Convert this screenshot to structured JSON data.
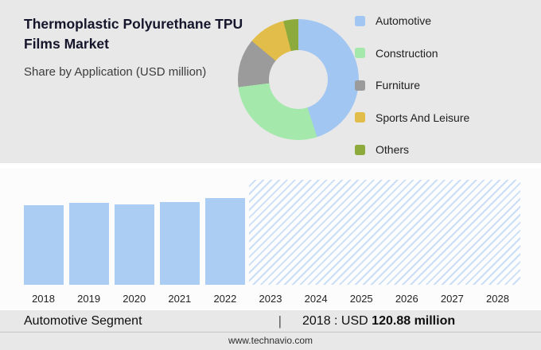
{
  "header": {
    "title_line1": "Thermoplastic Polyurethane TPU",
    "title_line2": "Films Market",
    "subtitle": "Share by Application (USD million)"
  },
  "chart_data": [
    {
      "type": "pie",
      "subtype": "donut",
      "title": "Share by Application (USD million)",
      "unit": "USD million",
      "legend_position": "right",
      "segments": [
        {
          "label": "Automotive",
          "percent": 45,
          "color": "#a2c6f2"
        },
        {
          "label": "Construction",
          "percent": 28,
          "color": "#a5e8ab"
        },
        {
          "label": "Furniture",
          "percent": 13,
          "color": "#9b9b9b"
        },
        {
          "label": "Sports And Leisure",
          "percent": 10,
          "color": "#e3bd4a"
        },
        {
          "label": "Others",
          "percent": 4,
          "color": "#8dab3c"
        }
      ]
    },
    {
      "type": "bar",
      "title": "",
      "xlabel": "",
      "ylabel": "",
      "categories": [
        "2018",
        "2019",
        "2020",
        "2021",
        "2022",
        "2023",
        "2024",
        "2025",
        "2026",
        "2027",
        "2028"
      ],
      "series": [
        {
          "name": "Automotive segment (USD million)",
          "values": [
            120.88,
            125,
            122,
            126,
            132,
            null,
            null,
            null,
            null,
            null,
            null
          ]
        }
      ],
      "forecast_categories": [
        "2023",
        "2024",
        "2025",
        "2026",
        "2027",
        "2028"
      ],
      "bar_color": "#abcdf3",
      "hatch_color": "#cadef8",
      "ylim": [
        0,
        160
      ],
      "grid": false,
      "legend_position": "none"
    }
  ],
  "footer": {
    "segment_label": "Automotive Segment",
    "divider": "|",
    "value_prefix": "2018 : USD",
    "value": "120.88",
    "value_suffix": "million",
    "website": "www.technavio.com"
  },
  "colors": {
    "panel_bg": "#e8e8e8",
    "chart_bg": "#fcfcfc"
  }
}
